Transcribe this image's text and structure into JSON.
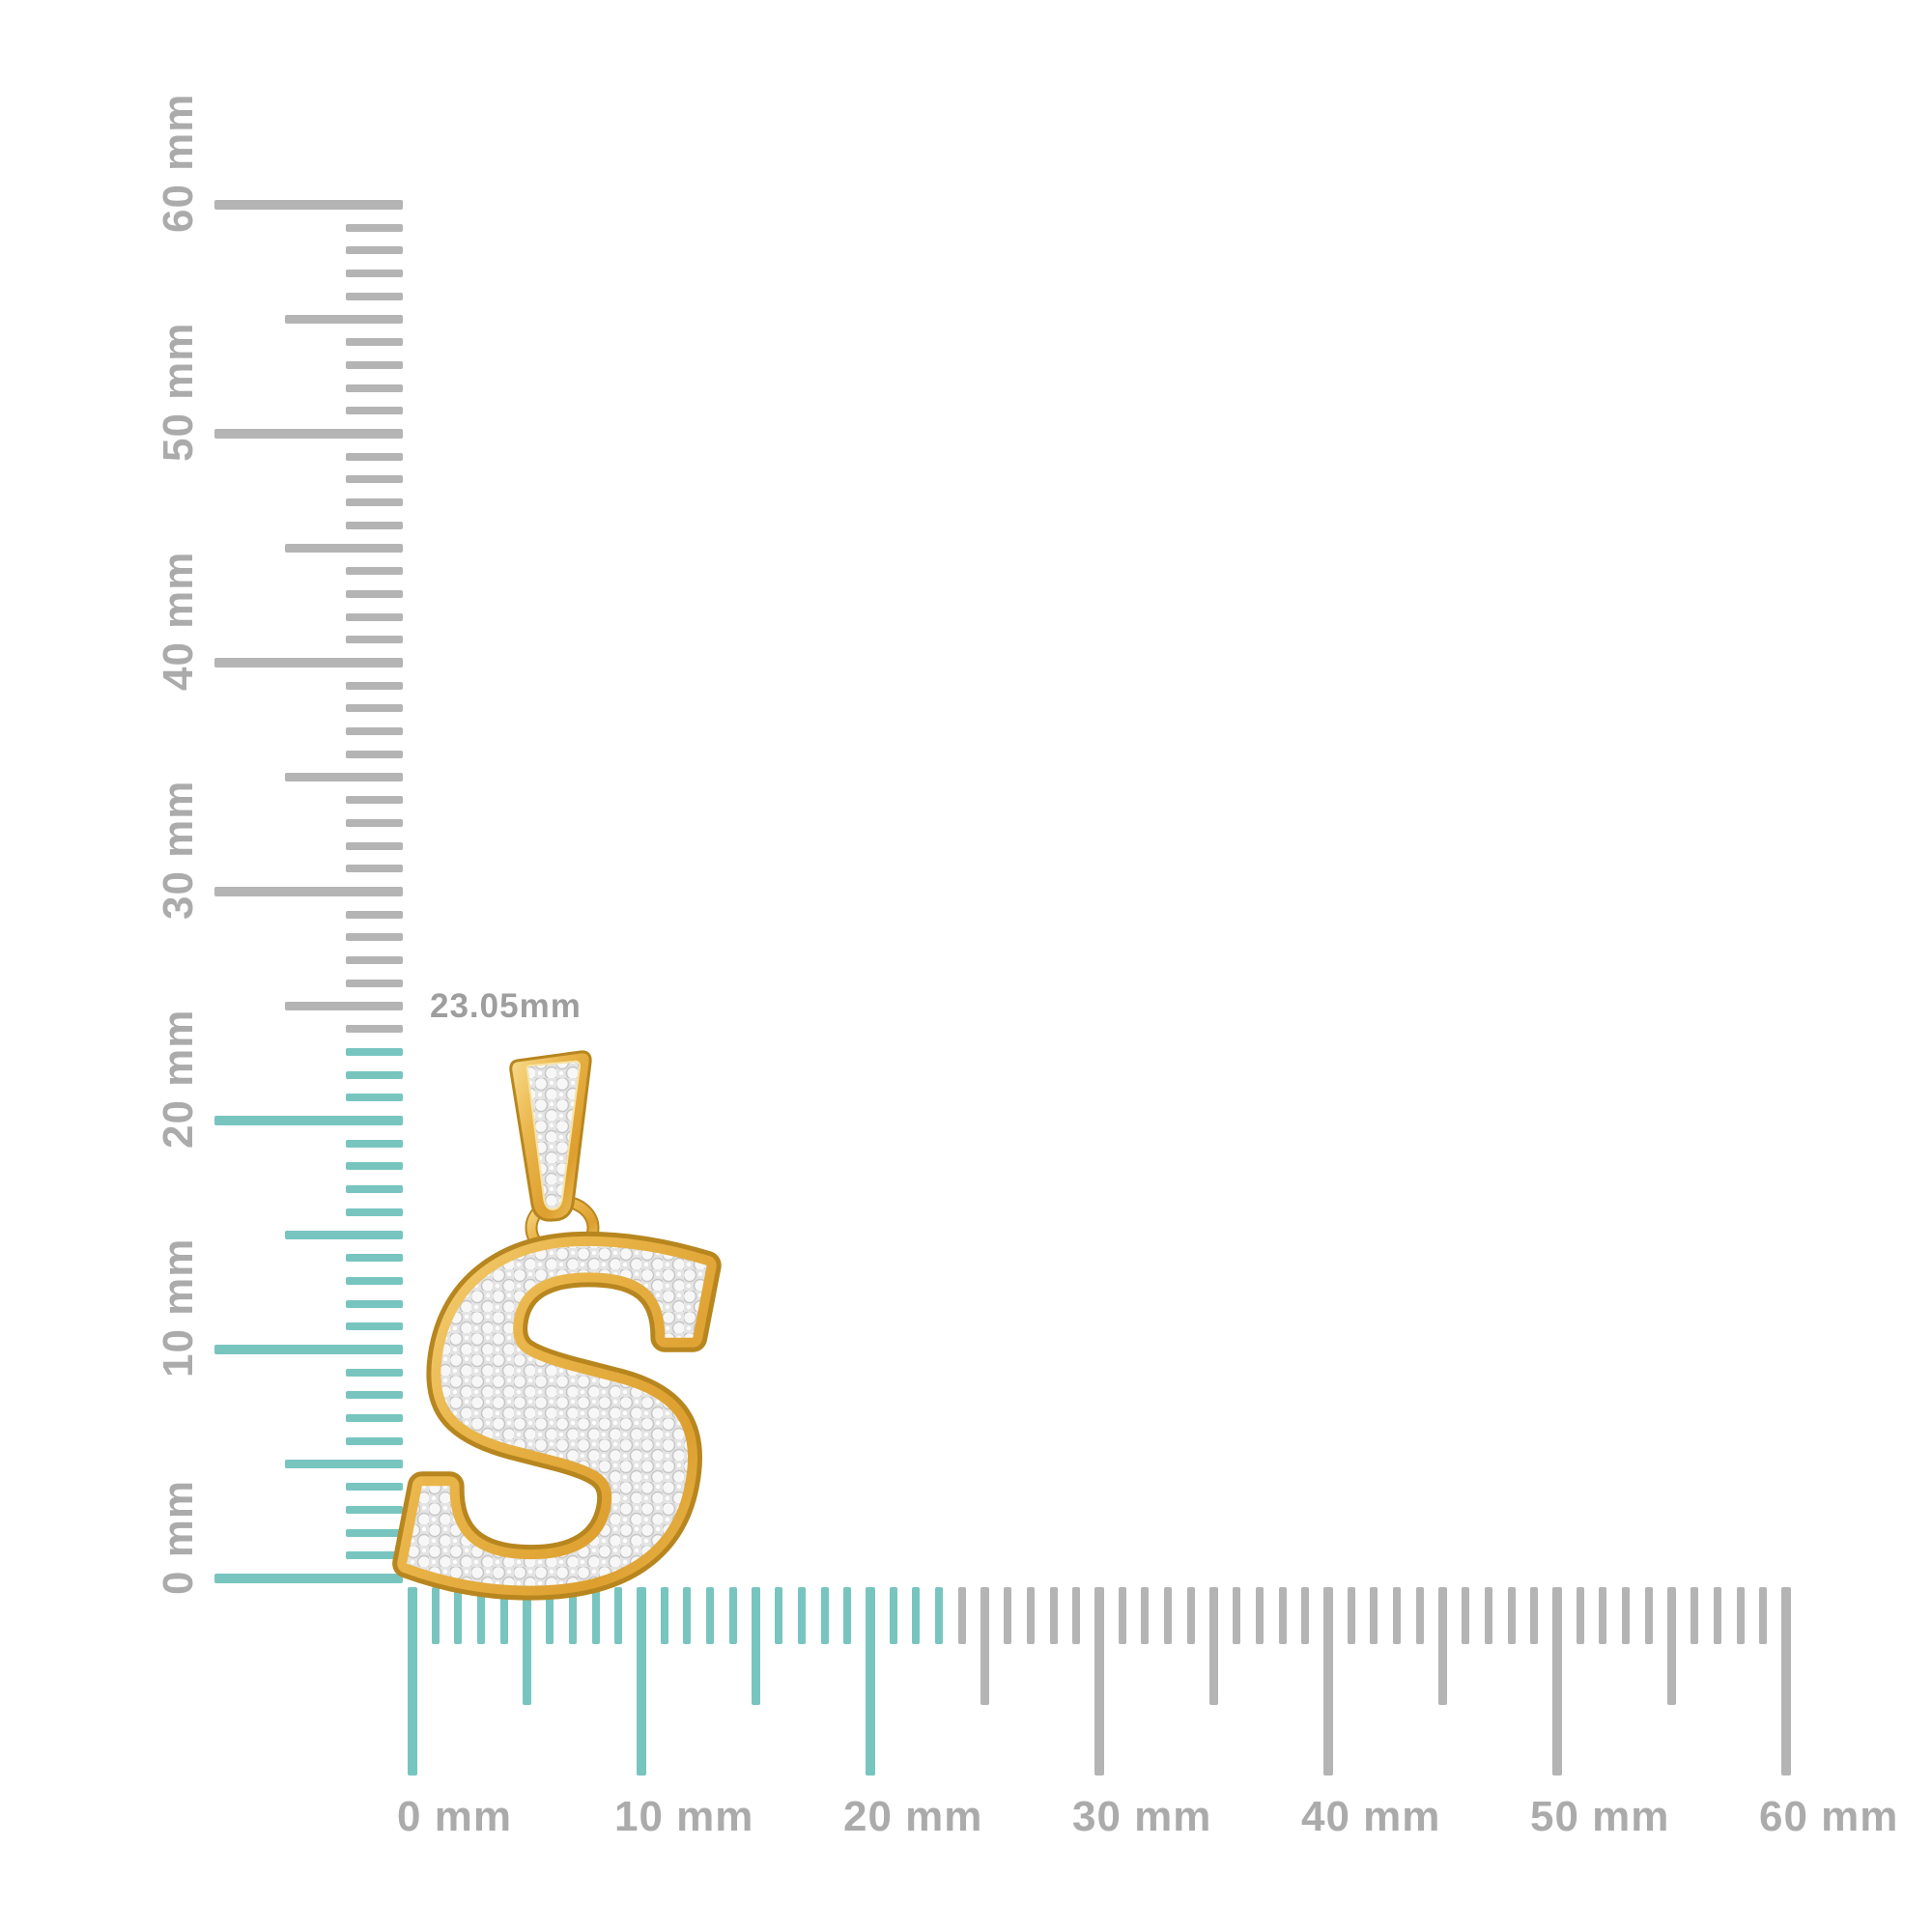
{
  "image": {
    "type": "jewelry-size-guide",
    "background": "#ffffff"
  },
  "annotation": {
    "text": "23.05mm",
    "color": "#9e9e9e"
  },
  "unit": "mm",
  "measured_height_mm": 23.05,
  "rulers": {
    "colors": {
      "tick": "#b4b4b4",
      "highlight": "#78c5c0",
      "label": "#ababab"
    },
    "vertical": {
      "side": "left",
      "min_mm": 0,
      "max_mm": 60,
      "major_step_mm": 10,
      "mid_step_mm": 5,
      "minor_step_mm": 1,
      "highlight_to_mm": 23.05,
      "labels": [
        {
          "mm": 0,
          "text": "0 mm"
        },
        {
          "mm": 10,
          "text": "10 mm"
        },
        {
          "mm": 20,
          "text": "20 mm"
        },
        {
          "mm": 30,
          "text": "30 mm"
        },
        {
          "mm": 40,
          "text": "40 mm"
        },
        {
          "mm": 50,
          "text": "50 mm"
        },
        {
          "mm": 60,
          "text": "60 mm"
        }
      ]
    },
    "horizontal": {
      "side": "bottom",
      "min_mm": 0,
      "max_mm": 60,
      "major_step_mm": 10,
      "mid_step_mm": 5,
      "minor_step_mm": 1,
      "highlight_to_mm": 23.05,
      "labels": [
        {
          "mm": 0,
          "text": "0 mm"
        },
        {
          "mm": 10,
          "text": "10 mm"
        },
        {
          "mm": 20,
          "text": "20 mm"
        },
        {
          "mm": 30,
          "text": "30 mm"
        },
        {
          "mm": 40,
          "text": "40 mm"
        },
        {
          "mm": 50,
          "text": "50 mm"
        },
        {
          "mm": 60,
          "text": "60 mm"
        }
      ]
    }
  },
  "pendant": {
    "letter": "S",
    "description": "Yellow-gold initial S pendant with diamond pave, tapered bail and round jump ring",
    "colors": {
      "gold": "#e7b452",
      "gold_light": "#f9dd8e",
      "gold_dark": "#dd9f2e",
      "gold_outline": "#b8861f",
      "pave_base": "#e4e4e4",
      "pave_bead": "#f7f7f7"
    }
  }
}
